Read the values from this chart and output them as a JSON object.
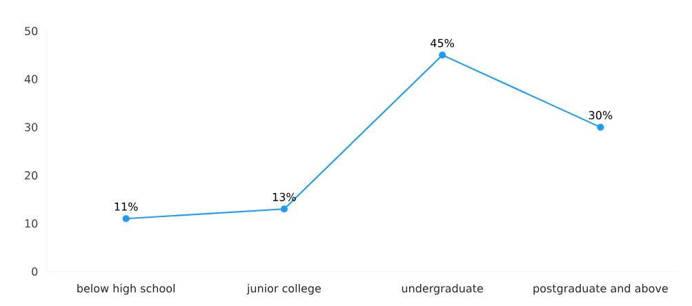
{
  "chart_data": {
    "type": "line",
    "categories": [
      "below high school",
      "junior college",
      "undergraduate",
      "postgraduate and above"
    ],
    "values": [
      11,
      13,
      45,
      30
    ],
    "value_labels": [
      "11%",
      "13%",
      "45%",
      "30%"
    ],
    "color": "#1e9bff",
    "marker": "circle",
    "line_style": "solid",
    "ylim": [
      0,
      50
    ],
    "yticks": [
      0,
      10,
      20,
      30,
      40,
      50
    ]
  }
}
